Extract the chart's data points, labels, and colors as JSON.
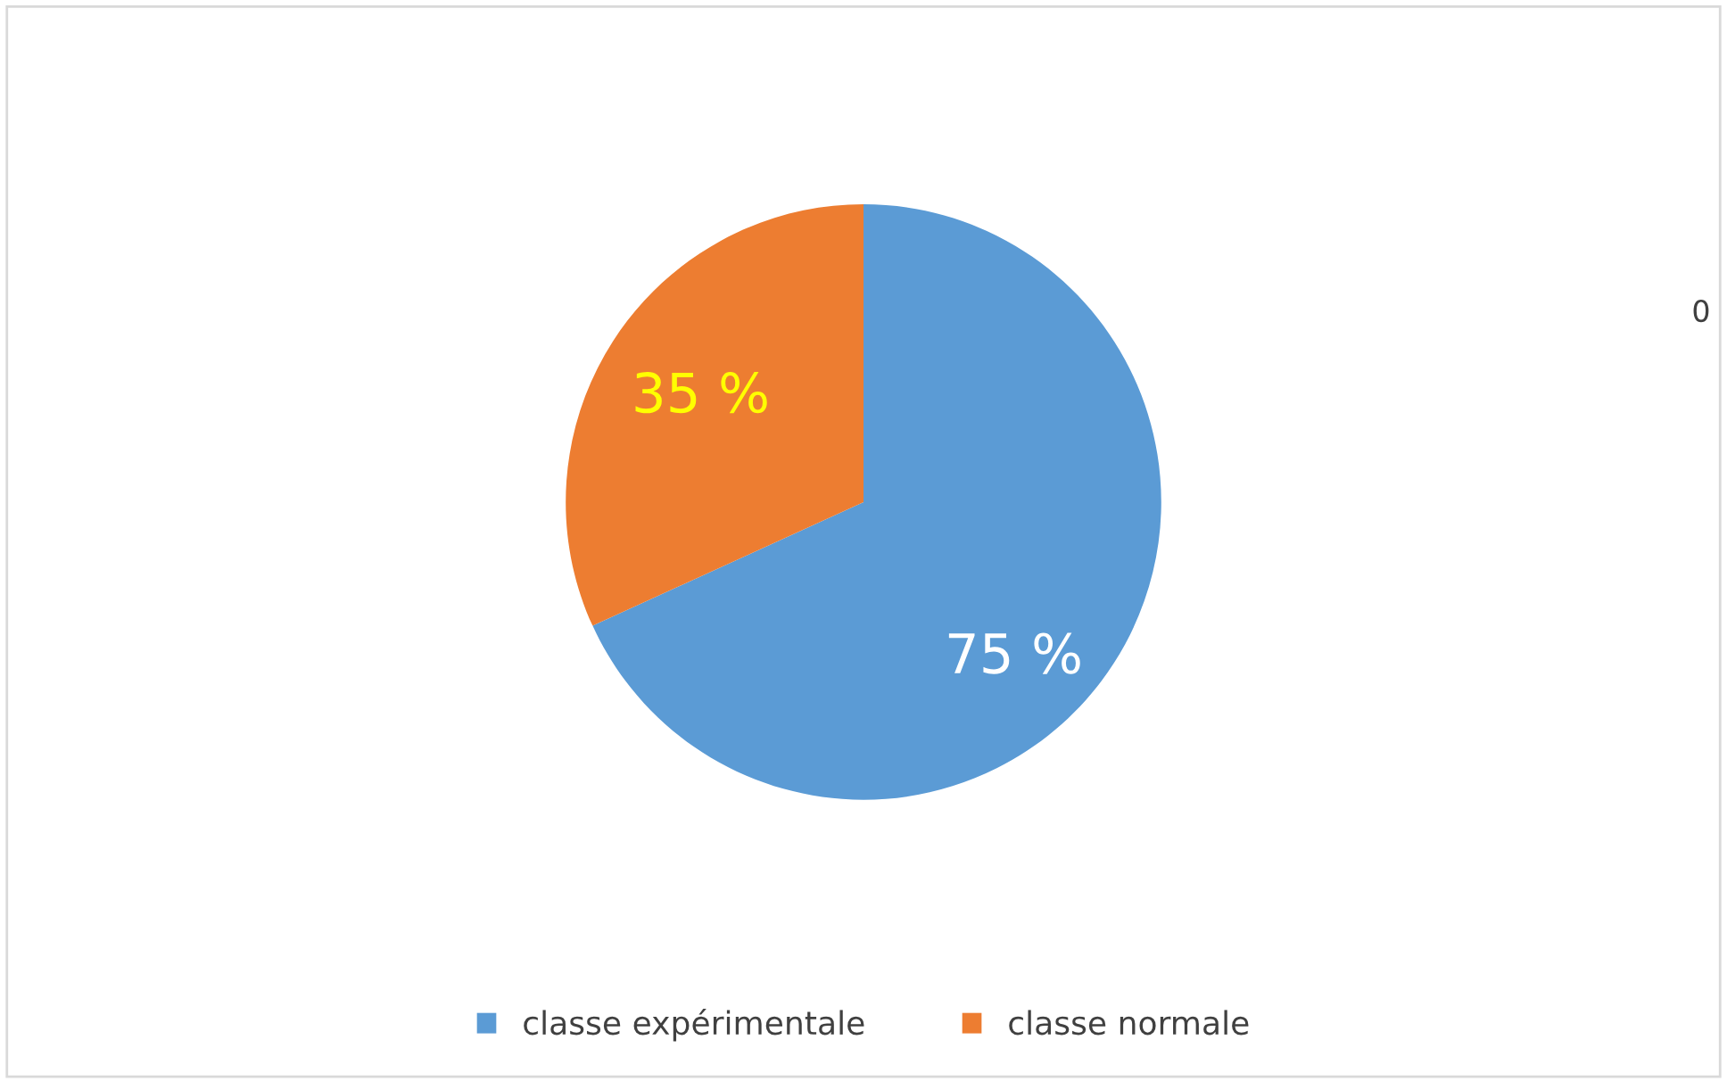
{
  "chart_data": {
    "type": "pie",
    "categories": [
      "classe expérimentale",
      "classe normale"
    ],
    "values": [
      75,
      35
    ],
    "colors": [
      "#5b9bd5",
      "#ed7d31"
    ],
    "value_labels": [
      "75 %",
      "35 %"
    ],
    "legend": "bottom",
    "annotations": [
      {
        "text": "0"
      }
    ]
  }
}
